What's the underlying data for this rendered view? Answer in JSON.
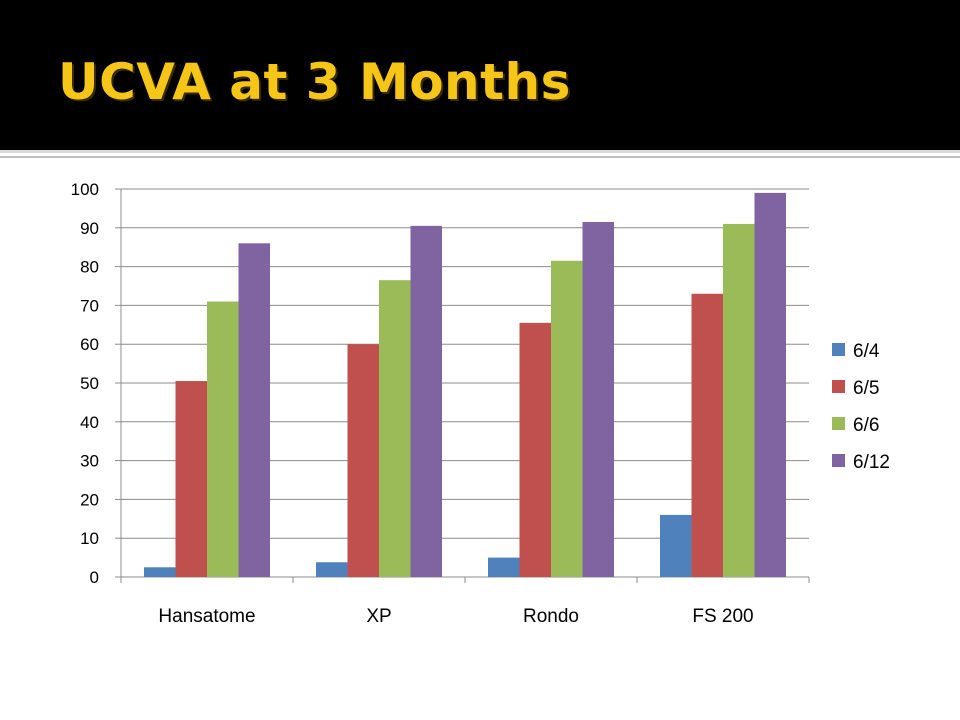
{
  "slide": {
    "title": "UCVA at 3 Months",
    "title_color": "#f5c518",
    "background_color": "#000000"
  },
  "chart_data": {
    "type": "bar",
    "title": "",
    "xlabel": "",
    "ylabel": "",
    "ylim": [
      0,
      100
    ],
    "yticks": [
      0,
      10,
      20,
      30,
      40,
      50,
      60,
      70,
      80,
      90,
      100
    ],
    "grid": true,
    "legend_position": "right",
    "categories": [
      "Hansatome",
      "XP",
      "Rondo",
      "FS 200"
    ],
    "series": [
      {
        "name": "6/4",
        "color": "#4f81bd",
        "values": [
          2.5,
          3.8,
          5,
          16
        ]
      },
      {
        "name": "6/5",
        "color": "#c0504d",
        "values": [
          50.5,
          60,
          65.5,
          73
        ]
      },
      {
        "name": "6/6",
        "color": "#9bbb59",
        "values": [
          71,
          76.5,
          81.5,
          91
        ]
      },
      {
        "name": "6/12",
        "color": "#8064a2",
        "values": [
          86,
          90.5,
          91.5,
          99
        ]
      }
    ]
  }
}
